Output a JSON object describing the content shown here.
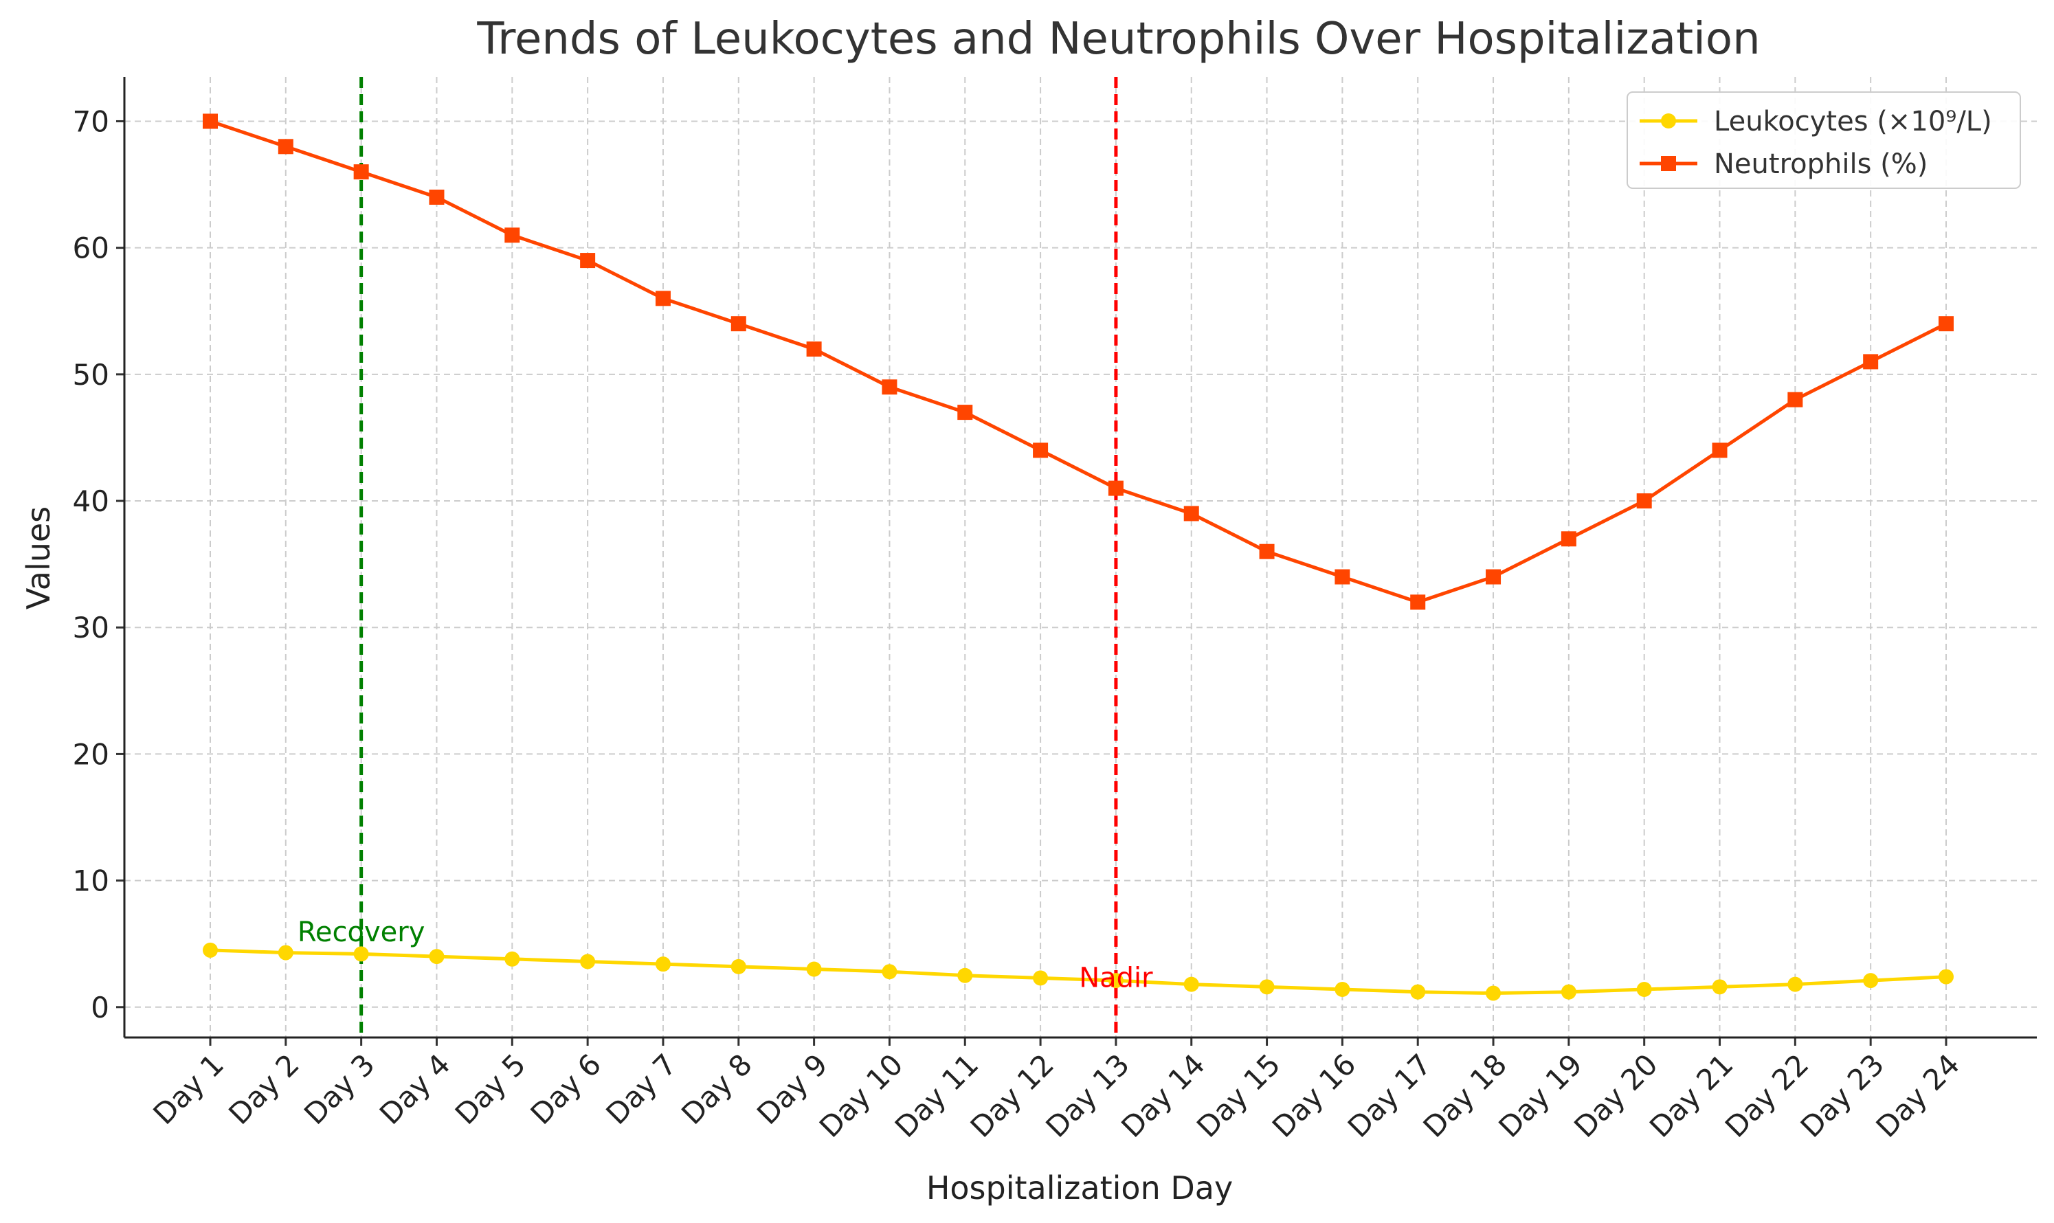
{
  "chart_data": {
    "type": "line",
    "title": "Trends of Leukocytes and Neutrophils Over Hospitalization",
    "xlabel": "Hospitalization Day",
    "ylabel": "Values",
    "categories": [
      "Day 1",
      "Day 2",
      "Day 3",
      "Day 4",
      "Day 5",
      "Day 6",
      "Day 7",
      "Day 8",
      "Day 9",
      "Day 10",
      "Day 11",
      "Day 12",
      "Day 13",
      "Day 14",
      "Day 15",
      "Day 16",
      "Day 17",
      "Day 18",
      "Day 19",
      "Day 20",
      "Day 21",
      "Day 22",
      "Day 23",
      "Day 24"
    ],
    "ylim": [
      -2.4,
      73.5
    ],
    "yticks": [
      0,
      10,
      20,
      30,
      40,
      50,
      60,
      70
    ],
    "grid": true,
    "legend_position": "top-right",
    "series": [
      {
        "name": "Leukocytes (×10⁹/L)",
        "color": "#FFD700",
        "marker": "circle",
        "values": [
          4.5,
          4.3,
          4.2,
          4.0,
          3.8,
          3.6,
          3.4,
          3.2,
          3.0,
          2.8,
          2.5,
          2.3,
          2.1,
          1.8,
          1.6,
          1.4,
          1.2,
          1.1,
          1.2,
          1.4,
          1.6,
          1.8,
          2.1,
          2.4
        ]
      },
      {
        "name": "Neutrophils (%)",
        "color": "#FF4500",
        "marker": "square",
        "values": [
          70,
          68,
          66,
          64,
          61,
          59,
          56,
          54,
          52,
          49,
          47,
          44,
          41,
          39,
          36,
          34,
          32,
          34,
          37,
          40,
          44,
          48,
          51,
          54
        ]
      }
    ],
    "annotations": [
      {
        "label": "Recovery",
        "day_index": 2,
        "color": "#008000",
        "label_value": 5.2
      },
      {
        "label": "Nadir",
        "day_index": 12,
        "color": "#FF0000",
        "label_value": 1.6
      }
    ]
  }
}
